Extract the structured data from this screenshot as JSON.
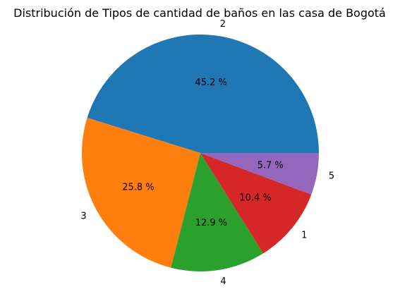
{
  "chart_data": {
    "type": "pie",
    "title": "Distribución de Tipos de cantidad de baños en las casa de Bogotá",
    "slices": [
      {
        "label": "2",
        "value": 45.2,
        "pct_label": "45.2 %",
        "color": "#1f77b4"
      },
      {
        "label": "3",
        "value": 25.8,
        "pct_label": "25.8 %",
        "color": "#ff7f0e"
      },
      {
        "label": "4",
        "value": 12.9,
        "pct_label": "12.9 %",
        "color": "#2ca02c"
      },
      {
        "label": "1",
        "value": 10.4,
        "pct_label": "10.4 %",
        "color": "#d62728"
      },
      {
        "label": "5",
        "value": 5.7,
        "pct_label": "5.7 %",
        "color": "#9467bd"
      }
    ],
    "start_angle_deg": 0,
    "direction": "counterclockwise"
  }
}
